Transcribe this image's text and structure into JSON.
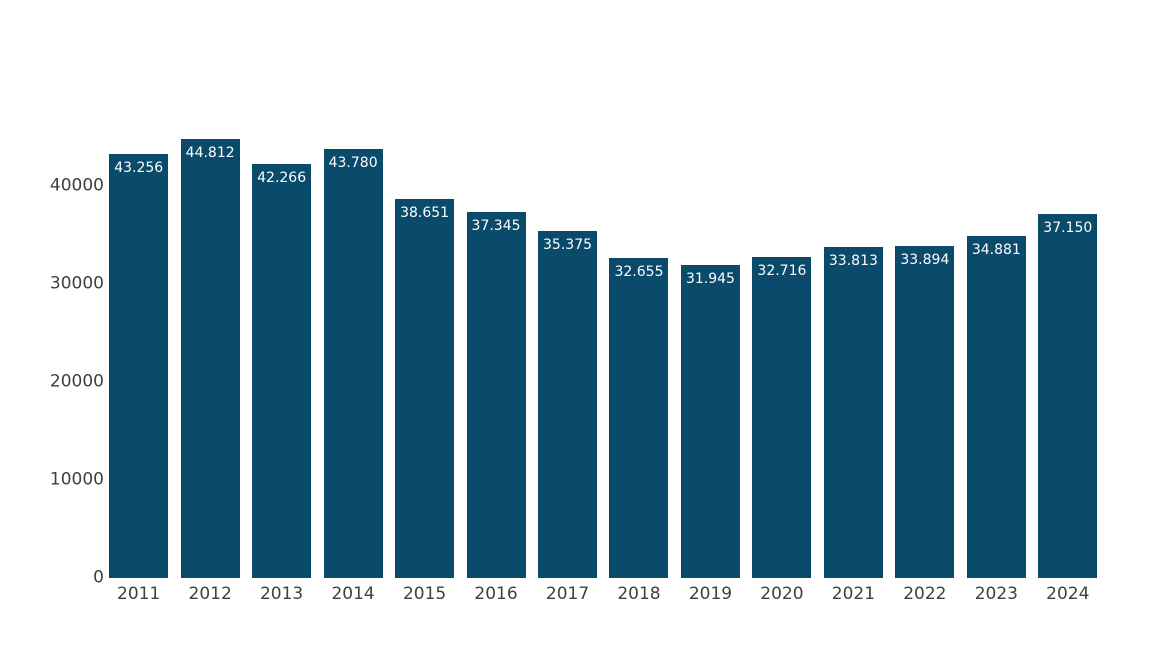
{
  "chart_data": {
    "type": "bar",
    "categories": [
      "2011",
      "2012",
      "2013",
      "2014",
      "2015",
      "2016",
      "2017",
      "2018",
      "2019",
      "2020",
      "2021",
      "2022",
      "2023",
      "2024"
    ],
    "values": [
      43256,
      44812,
      42266,
      43780,
      38651,
      37345,
      35375,
      32655,
      31945,
      32716,
      33813,
      33894,
      34881,
      37150
    ],
    "value_labels": [
      "43.256",
      "44.812",
      "42.266",
      "43.780",
      "38.651",
      "37.345",
      "35.375",
      "32.655",
      "31.945",
      "32.716",
      "33.813",
      "33.894",
      "34.881",
      "37.150"
    ],
    "yticks": {
      "values": [
        0,
        10000,
        20000,
        30000,
        40000
      ],
      "labels": [
        "0",
        "10000",
        "20000",
        "30000",
        "40000"
      ]
    },
    "grid": false,
    "legend": false,
    "bar_labels_position": "inside-top",
    "colors": {
      "bar": "#0A4A6B",
      "axis_text": "#404040",
      "bar_label": "#FFFFFF",
      "background": "#FFFFFF"
    }
  }
}
